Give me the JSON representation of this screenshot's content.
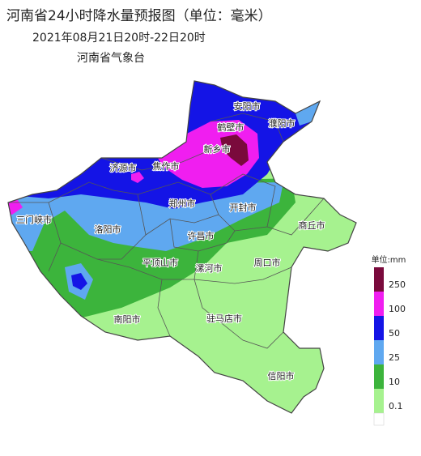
{
  "header": {
    "title": "河南省24小时降水量预报图（单位：毫米）",
    "subtitle": "2021年08月21日20时-22日20时",
    "source": "河南省气象台"
  },
  "cities": [
    "安阳市",
    "濮阳市",
    "鹤壁市",
    "新乡市",
    "济源市",
    "焦作市",
    "三门峡市",
    "郑州市",
    "开封市",
    "商丘市",
    "洛阳市",
    "许昌市",
    "周口市",
    "平顶山市",
    "漯河市",
    "南阳市",
    "驻马店市",
    "信阳市"
  ],
  "legend": {
    "unit": "单位:mm",
    "items": [
      {
        "label": 250,
        "color": "#7a0a3c"
      },
      {
        "label": 100,
        "color": "#f01ef0"
      },
      {
        "label": 50,
        "color": "#1414e6"
      },
      {
        "label": 25,
        "color": "#5fa8f0"
      },
      {
        "label": 10,
        "color": "#3cb43c"
      },
      {
        "label": 0.1,
        "color": "#a6f28f"
      }
    ]
  }
}
